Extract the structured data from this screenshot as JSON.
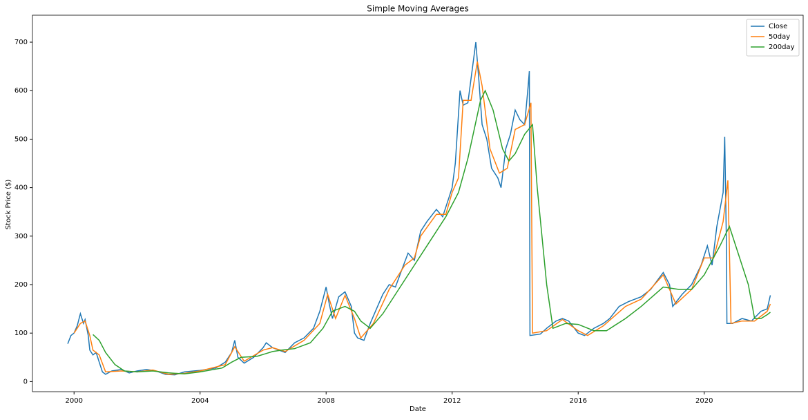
{
  "chart_data": {
    "type": "line",
    "title": "Simple Moving Averages",
    "x_label": "Date",
    "y_label": "Stock Price ($)",
    "xlim": [
      1998.68,
      2023.14
    ],
    "ylim": [
      -20.8,
      755.6
    ],
    "xticks": [
      2000,
      2004,
      2008,
      2012,
      2016,
      2020
    ],
    "yticks": [
      0,
      100,
      200,
      300,
      400,
      500,
      600,
      700
    ],
    "legend": "upper right",
    "grid": false,
    "series": [
      {
        "name": "Close",
        "color": "#1f77b4",
        "x": [
          1999.8,
          1999.9,
          2000.0,
          2000.1,
          2000.2,
          2000.3,
          2000.35,
          2000.45,
          2000.5,
          2000.6,
          2000.7,
          2000.8,
          2000.9,
          2001.0,
          2001.2,
          2001.5,
          2001.75,
          2002.0,
          2002.3,
          2002.6,
          2002.9,
          2003.2,
          2003.5,
          2003.8,
          2004.0,
          2004.5,
          2004.8,
          2005.0,
          2005.1,
          2005.2,
          2005.4,
          2005.7,
          2006.0,
          2006.1,
          2006.3,
          2006.5,
          2006.7,
          2007.0,
          2007.3,
          2007.6,
          2007.8,
          2008.0,
          2008.1,
          2008.2,
          2008.4,
          2008.6,
          2008.8,
          2008.9,
          2009.0,
          2009.2,
          2009.4,
          2009.6,
          2009.8,
          2010.0,
          2010.2,
          2010.4,
          2010.6,
          2010.8,
          2011.0,
          2011.2,
          2011.5,
          2011.7,
          2011.9,
          2012.0,
          2012.1,
          2012.25,
          2012.35,
          2012.5,
          2012.65,
          2012.75,
          2012.85,
          2012.95,
          2013.1,
          2013.25,
          2013.45,
          2013.55,
          2013.7,
          2013.85,
          2014.0,
          2014.15,
          2014.3,
          2014.4,
          2014.45,
          2014.47,
          2014.8,
          2015.0,
          2015.3,
          2015.5,
          2015.7,
          2016.0,
          2016.2,
          2016.5,
          2016.8,
          2017.0,
          2017.3,
          2017.6,
          2018.0,
          2018.3,
          2018.7,
          2018.9,
          2019.0,
          2019.3,
          2019.6,
          2019.9,
          2020.1,
          2020.25,
          2020.4,
          2020.6,
          2020.65,
          2020.7,
          2020.72,
          2020.9,
          2021.2,
          2021.5,
          2021.8,
          2022.0,
          2022.1
        ],
        "values": [
          78,
          95,
          100,
          115,
          140,
          120,
          128,
          95,
          65,
          55,
          60,
          40,
          20,
          15,
          22,
          25,
          18,
          22,
          25,
          22,
          15,
          14,
          20,
          22,
          23,
          28,
          40,
          60,
          85,
          50,
          38,
          50,
          70,
          80,
          70,
          65,
          60,
          80,
          90,
          110,
          145,
          195,
          160,
          130,
          175,
          185,
          155,
          100,
          90,
          85,
          120,
          150,
          180,
          200,
          195,
          230,
          265,
          250,
          310,
          330,
          355,
          340,
          380,
          400,
          450,
          600,
          570,
          575,
          650,
          700,
          620,
          530,
          500,
          440,
          420,
          400,
          480,
          510,
          560,
          540,
          530,
          600,
          640,
          95,
          98,
          110,
          125,
          130,
          125,
          100,
          95,
          110,
          120,
          130,
          155,
          165,
          175,
          190,
          225,
          200,
          155,
          180,
          200,
          240,
          280,
          240,
          320,
          390,
          505,
          300,
          120,
          120,
          130,
          125,
          145,
          150,
          178
        ]
      },
      {
        "name": "50day",
        "color": "#ff7f0e",
        "x": [
          2000.0,
          2000.2,
          2000.35,
          2000.5,
          2000.6,
          2000.8,
          2001.0,
          2001.5,
          2002.0,
          2002.5,
          2003.0,
          2003.5,
          2004.0,
          2004.8,
          2005.1,
          2005.4,
          2006.0,
          2006.3,
          2006.7,
          2007.3,
          2007.8,
          2008.05,
          2008.3,
          2008.6,
          2008.9,
          2009.1,
          2009.5,
          2010.0,
          2010.5,
          2010.8,
          2011.0,
          2011.5,
          2011.8,
          2012.0,
          2012.2,
          2012.35,
          2012.6,
          2012.8,
          2012.95,
          2013.2,
          2013.5,
          2013.75,
          2014.0,
          2014.3,
          2014.5,
          2014.55,
          2015.0,
          2015.5,
          2016.0,
          2016.3,
          2016.8,
          2017.5,
          2018.0,
          2018.7,
          2019.1,
          2019.6,
          2020.0,
          2020.3,
          2020.6,
          2020.75,
          2020.85,
          2021.2,
          2021.6,
          2022.0,
          2022.1
        ],
        "values": [
          100,
          120,
          125,
          95,
          65,
          55,
          20,
          22,
          20,
          24,
          15,
          17,
          22,
          35,
          72,
          42,
          65,
          70,
          62,
          85,
          120,
          180,
          130,
          178,
          130,
          90,
          120,
          190,
          240,
          255,
          300,
          345,
          345,
          390,
          420,
          580,
          580,
          660,
          610,
          480,
          430,
          440,
          520,
          530,
          575,
          100,
          105,
          128,
          105,
          95,
          115,
          155,
          170,
          220,
          160,
          190,
          255,
          255,
          330,
          415,
          120,
          125,
          125,
          145,
          160
        ]
      },
      {
        "name": "200day",
        "color": "#2ca02c",
        "x": [
          2000.6,
          2000.8,
          2001.0,
          2001.3,
          2001.6,
          2002.0,
          2002.5,
          2003.0,
          2003.5,
          2004.0,
          2004.7,
          2005.0,
          2005.3,
          2005.8,
          2006.3,
          2006.6,
          2007.0,
          2007.5,
          2007.9,
          2008.2,
          2008.6,
          2008.9,
          2009.1,
          2009.4,
          2009.8,
          2010.3,
          2010.8,
          2011.3,
          2011.8,
          2012.2,
          2012.5,
          2012.9,
          2013.05,
          2013.3,
          2013.6,
          2013.8,
          2014.0,
          2014.3,
          2014.55,
          2014.7,
          2015.0,
          2015.2,
          2015.6,
          2016.0,
          2016.5,
          2016.9,
          2017.5,
          2018.0,
          2018.7,
          2019.2,
          2019.6,
          2020.0,
          2020.5,
          2020.8,
          2021.1,
          2021.4,
          2021.6,
          2021.8,
          2022.0,
          2022.1
        ],
        "values": [
          97,
          85,
          60,
          35,
          22,
          20,
          22,
          18,
          16,
          20,
          28,
          40,
          50,
          52,
          62,
          65,
          68,
          80,
          110,
          145,
          155,
          145,
          125,
          110,
          140,
          190,
          240,
          290,
          340,
          390,
          460,
          580,
          600,
          560,
          480,
          455,
          470,
          510,
          530,
          400,
          200,
          110,
          120,
          118,
          105,
          105,
          130,
          155,
          195,
          190,
          190,
          220,
          280,
          320,
          260,
          200,
          130,
          130,
          138,
          143
        ]
      }
    ]
  }
}
